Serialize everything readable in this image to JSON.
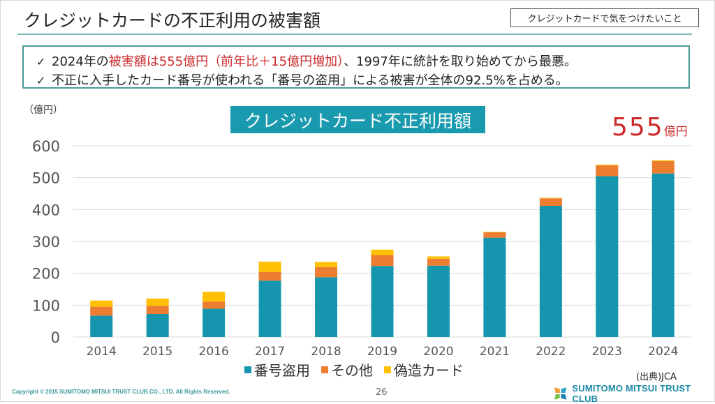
{
  "page": {
    "title": "クレジットカードの不正利用の被害額",
    "tag_button": "クレジットカードで気をつけたいこと",
    "summary": {
      "check_icon": "✓",
      "line1": {
        "pre": "2024年の",
        "highlight": "被害額は555億円（前年比＋15億円増加）",
        "post": "、1997年に統計を取り始めてから最悪。"
      },
      "line2": "不正に入手したカード番号が使われる「番号の盗用」による被害が全体の92.5%を占める。"
    },
    "unit_label": "（億円）",
    "chart_title_box": "クレジットカード不正利用額",
    "big_total": {
      "value": "555",
      "unit": "億円"
    },
    "source": "(出典)JCA",
    "copyright": "Copyright © 2015 SUMITOMO MITSUI TRUST CLUB CO., LTD. All Rights Reserved.",
    "page_number": "26",
    "logo_text": "SUMITOMO MITSUI TRUST CLUB"
  },
  "colors": {
    "accent": "#1a9aae",
    "highlight_red": "#cc2a2a",
    "series_theft": "#1596ae",
    "series_other": "#ed7d31",
    "series_counterfeit": "#ffc000"
  },
  "chart_data": {
    "type": "bar",
    "stacked": true,
    "title": "クレジットカード不正利用額",
    "xlabel": "",
    "ylabel": "（億円）",
    "ylim": [
      0,
      600
    ],
    "yticks": [
      0,
      100,
      200,
      300,
      400,
      500,
      600
    ],
    "grid": true,
    "legend_position": "bottom",
    "categories": [
      "2014",
      "2015",
      "2016",
      "2017",
      "2018",
      "2019",
      "2020",
      "2021",
      "2022",
      "2023",
      "2024"
    ],
    "series": [
      {
        "name": "番号盗用",
        "color": "#1596ae",
        "values": [
          67.0,
          72.2,
          88.9,
          176.9,
          187.6,
          222.9,
          223.9,
          311.7,
          411.7,
          504.7,
          513.2
        ]
      },
      {
        "name": "その他",
        "color": "#ed7d31",
        "values": [
          28.0,
          25.6,
          22.5,
          27.2,
          31.8,
          34.3,
          21.8,
          16.9,
          23.4,
          33.9,
          39.1
        ]
      },
      {
        "name": "偽造カード",
        "color": "#ffc000",
        "values": [
          19.5,
          23.1,
          30.6,
          32.3,
          16.0,
          16.9,
          7.3,
          1.5,
          1.6,
          2.3,
          2.7
        ]
      }
    ],
    "totals": [
      114.5,
      120.9,
      142.0,
      236.4,
      235.4,
      274.1,
      253.0,
      330.1,
      436.7,
      540.9,
      555.0
    ]
  }
}
